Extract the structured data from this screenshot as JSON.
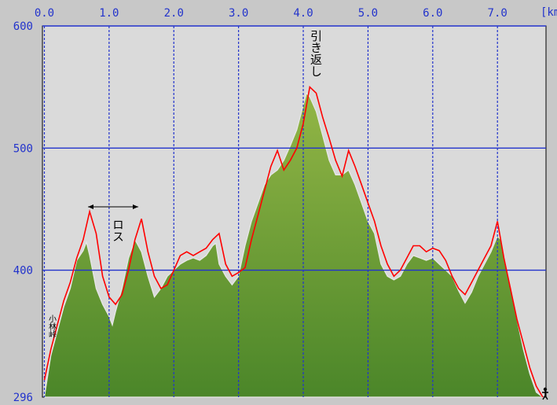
{
  "chart_data": {
    "type": "area",
    "xlabel": "",
    "ylabel": "",
    "x_unit_label": "[km",
    "xlim": [
      -0.03,
      7.75
    ],
    "ylim": [
      296,
      600
    ],
    "x_ticks": [
      "0.0",
      "1.0",
      "2.0",
      "3.0",
      "4.0",
      "5.0",
      "6.0",
      "7.0"
    ],
    "y_ticks": [
      "600",
      "500",
      "400",
      "296"
    ],
    "grid": true,
    "colors": {
      "background": "#c8c8c8",
      "plot_bg": "#dadada",
      "grid": "#2233cc",
      "fill_top": "#8db040",
      "fill_bottom": "#4e8a2a",
      "track": "#ff0000"
    },
    "series": [
      {
        "x": [
          0.0,
          0.1,
          0.2,
          0.3,
          0.4,
          0.5,
          0.6,
          0.65,
          0.7,
          0.8,
          0.9,
          1.0,
          1.05,
          1.1,
          1.2,
          1.3,
          1.4,
          1.5,
          1.6,
          1.7,
          1.8,
          1.9,
          2.0,
          2.1,
          2.2,
          2.3,
          2.4,
          2.5,
          2.6,
          2.65,
          2.7,
          2.8,
          2.9,
          3.0,
          3.1,
          3.2,
          3.3,
          3.4,
          3.5,
          3.6,
          3.7,
          3.8,
          3.9,
          4.0,
          4.05,
          4.1,
          4.2,
          4.3,
          4.4,
          4.5,
          4.6,
          4.7,
          4.8,
          4.9,
          5.0,
          5.1,
          5.2,
          5.3,
          5.4,
          5.5,
          5.6,
          5.7,
          5.8,
          5.9,
          6.0,
          6.1,
          6.2,
          6.3,
          6.4,
          6.5,
          6.6,
          6.7,
          6.8,
          6.9,
          7.0,
          7.05,
          7.1,
          7.2,
          7.3,
          7.4,
          7.5,
          7.6,
          7.7
        ],
        "values": [
          296,
          330,
          350,
          370,
          385,
          408,
          416,
          423,
          412,
          385,
          372,
          362,
          355,
          366,
          385,
          410,
          425,
          415,
          395,
          378,
          385,
          395,
          400,
          405,
          408,
          410,
          408,
          412,
          420,
          422,
          405,
          395,
          388,
          395,
          420,
          440,
          455,
          470,
          478,
          482,
          490,
          502,
          515,
          535,
          545,
          542,
          530,
          510,
          490,
          478,
          478,
          482,
          470,
          455,
          440,
          430,
          405,
          395,
          392,
          395,
          405,
          412,
          410,
          408,
          410,
          405,
          400,
          395,
          383,
          373,
          382,
          395,
          405,
          415,
          428,
          425,
          410,
          385,
          360,
          335,
          315,
          300,
          296
        ]
      },
      {
        "x": [
          0.0,
          0.1,
          0.2,
          0.3,
          0.4,
          0.5,
          0.6,
          0.7,
          0.8,
          0.9,
          1.0,
          1.1,
          1.2,
          1.3,
          1.4,
          1.5,
          1.6,
          1.7,
          1.8,
          1.9,
          2.0,
          2.1,
          2.2,
          2.3,
          2.4,
          2.5,
          2.6,
          2.7,
          2.8,
          2.9,
          3.0,
          3.1,
          3.2,
          3.3,
          3.4,
          3.5,
          3.6,
          3.7,
          3.8,
          3.9,
          4.0,
          4.1,
          4.2,
          4.3,
          4.4,
          4.5,
          4.6,
          4.7,
          4.8,
          4.9,
          5.0,
          5.1,
          5.2,
          5.3,
          5.4,
          5.5,
          5.6,
          5.7,
          5.8,
          5.9,
          6.0,
          6.1,
          6.2,
          6.3,
          6.4,
          6.5,
          6.6,
          6.7,
          6.8,
          6.9,
          7.0,
          7.1,
          7.2,
          7.3,
          7.4,
          7.5,
          7.6,
          7.7
        ],
        "values": [
          310,
          335,
          355,
          375,
          390,
          410,
          425,
          448,
          430,
          395,
          378,
          372,
          380,
          400,
          425,
          442,
          415,
          395,
          385,
          388,
          400,
          412,
          415,
          412,
          415,
          418,
          425,
          430,
          405,
          395,
          398,
          402,
          425,
          445,
          465,
          485,
          498,
          482,
          490,
          500,
          520,
          550,
          545,
          525,
          508,
          490,
          477,
          498,
          485,
          470,
          455,
          440,
          420,
          405,
          395,
          400,
          410,
          420,
          420,
          415,
          418,
          416,
          408,
          395,
          385,
          380,
          390,
          400,
          410,
          420,
          440,
          410,
          385,
          360,
          340,
          320,
          305,
          296
        ]
      }
    ],
    "annotations": {
      "start": "小林峠",
      "loss": "ロス",
      "turnaround": "引き返し"
    }
  }
}
